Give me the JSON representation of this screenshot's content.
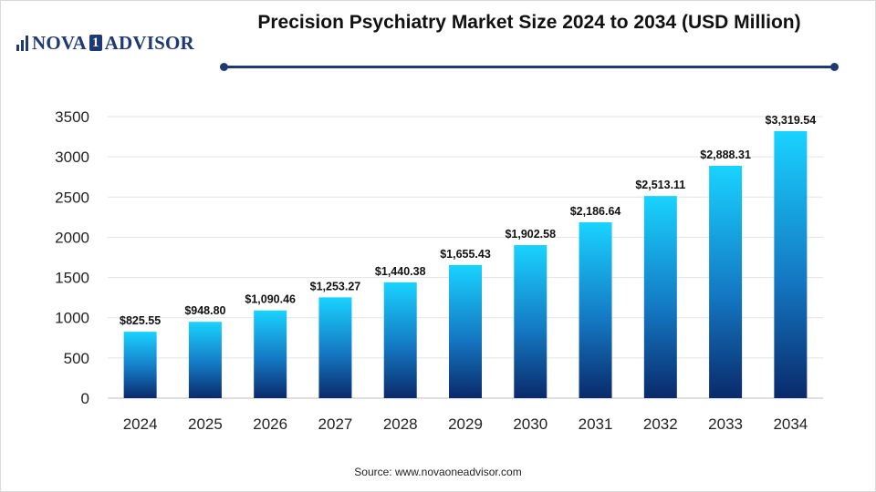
{
  "header": {
    "logo_left": "NOVA",
    "logo_box": "1",
    "logo_right": "ADVISOR",
    "title": "Precision Psychiatry Market Size 2024 to 2034 (USD Million)"
  },
  "footer": {
    "source": "Source: www.novaoneadvisor.com"
  },
  "colors": {
    "bar_top": "#19d3ff",
    "bar_mid": "#1479c4",
    "bar_bottom": "#0a2a6b",
    "brand": "#1f3a73",
    "grid": "#e3e3e3"
  },
  "chart_data": {
    "type": "bar",
    "title": "Precision Psychiatry Market Size 2024 to 2034 (USD Million)",
    "xlabel": "",
    "ylabel": "",
    "categories": [
      "2024",
      "2025",
      "2026",
      "2027",
      "2028",
      "2029",
      "2030",
      "2031",
      "2032",
      "2033",
      "2034"
    ],
    "values": [
      825.55,
      948.8,
      1090.46,
      1253.27,
      1440.38,
      1655.43,
      1902.58,
      2186.64,
      2513.11,
      2888.31,
      3319.54
    ],
    "data_labels": [
      "$825.55",
      "$948.80",
      "$1,090.46",
      "$1,253.27",
      "$1,440.38",
      "$1,655.43",
      "$1,902.58",
      "$2,186.64",
      "$2,513.11",
      "$2,888.31",
      "$3,319.54"
    ],
    "ylim": [
      0,
      3500
    ],
    "yticks": [
      0,
      500,
      1000,
      1500,
      2000,
      2500,
      3000,
      3500
    ],
    "grid": true,
    "legend": "none"
  }
}
